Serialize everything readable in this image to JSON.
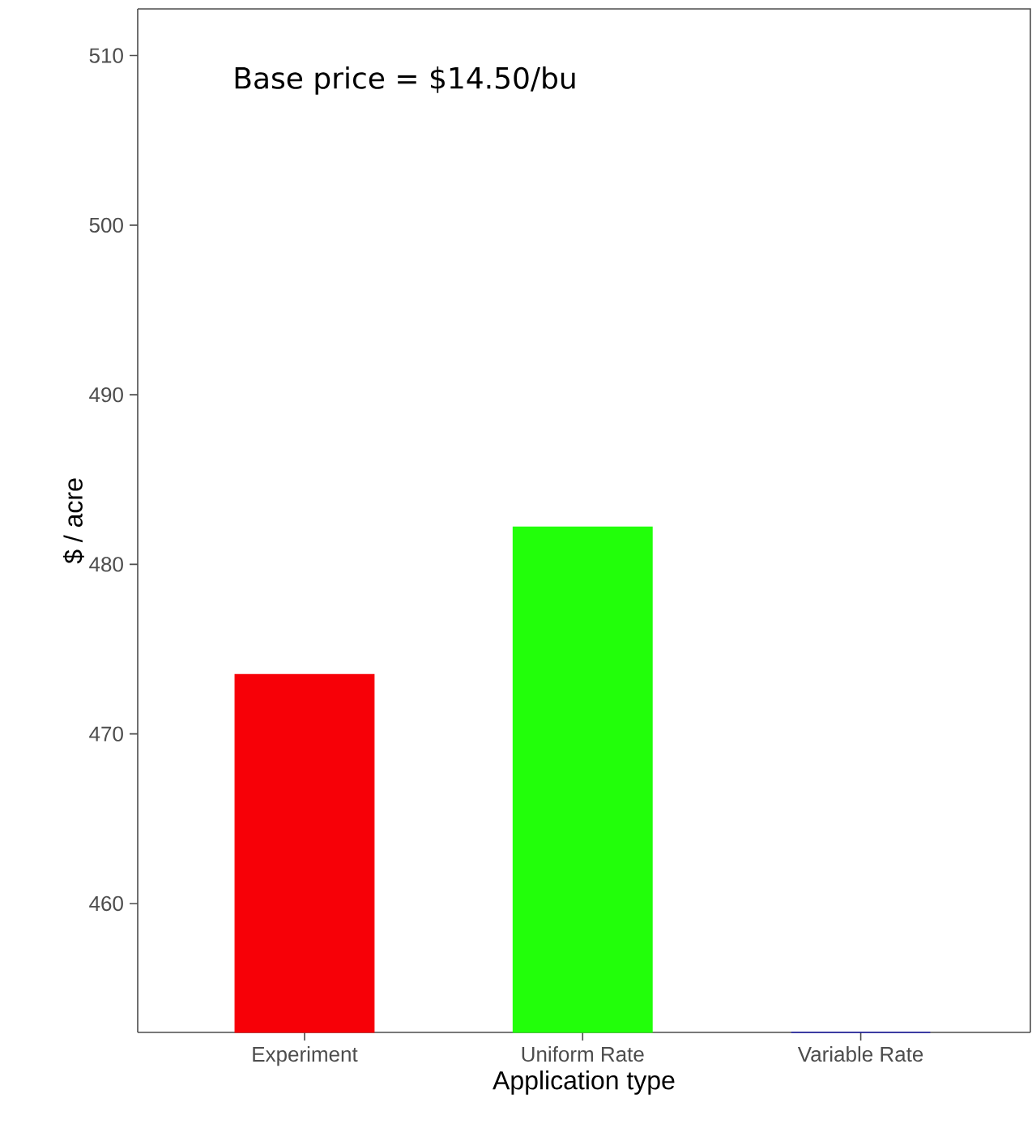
{
  "chart_data": {
    "type": "bar",
    "categories": [
      "Experiment",
      "Uniform Rate",
      "Variable Rate"
    ],
    "values": [
      473.5,
      482.2,
      452.4
    ],
    "colors": [
      "#f70007",
      "#22ff0a",
      "#0000cc"
    ],
    "xlabel": "Application type",
    "ylabel": "$ / acre",
    "ylim": [
      452.4,
      512.75
    ],
    "yticks": [
      460,
      470,
      480,
      490,
      500,
      510
    ],
    "annotations": [
      "Base price = $14.50/bu"
    ],
    "grid": false
  }
}
